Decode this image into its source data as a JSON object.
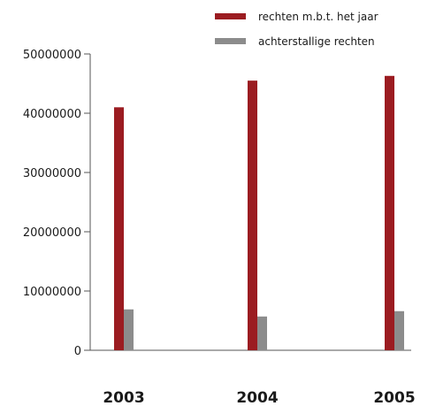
{
  "chart_data": {
    "type": "bar",
    "categories": [
      "2003",
      "2004",
      "2005"
    ],
    "series": [
      {
        "name": "rechten m.b.t. het jaar",
        "color": "#9b1c21",
        "values": [
          41000000,
          45500000,
          46300000
        ]
      },
      {
        "name": "achterstallige rechten",
        "color": "#8c8c8c",
        "values": [
          6900000,
          5700000,
          6600000
        ]
      }
    ],
    "yticks": [
      "0",
      "10000000",
      "20000000",
      "30000000",
      "40000000",
      "50000000"
    ],
    "ylim": [
      0,
      50000000
    ],
    "grid": false,
    "legend_position": "top-right"
  }
}
